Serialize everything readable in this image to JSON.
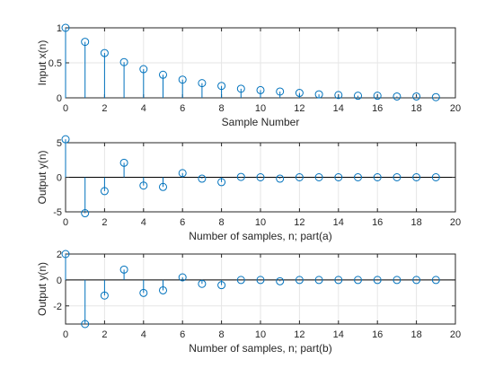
{
  "chart_data": [
    {
      "type": "stem",
      "xlabel": "Sample Number",
      "ylabel": "Input x(n)",
      "xlim": [
        0,
        20
      ],
      "ylim": [
        0,
        1
      ],
      "xticks": [
        "0",
        "2",
        "4",
        "6",
        "8",
        "10",
        "12",
        "14",
        "16",
        "18",
        "20"
      ],
      "yticks": [
        "0",
        "0.5",
        "1"
      ],
      "grid": true,
      "x": [
        0,
        1,
        2,
        3,
        4,
        5,
        6,
        7,
        8,
        9,
        10,
        11,
        12,
        13,
        14,
        15,
        16,
        17,
        18,
        19
      ],
      "values": [
        1,
        0.8,
        0.64,
        0.51,
        0.41,
        0.33,
        0.26,
        0.21,
        0.17,
        0.13,
        0.11,
        0.09,
        0.07,
        0.05,
        0.04,
        0.03,
        0.03,
        0.02,
        0.02,
        0.01
      ]
    },
    {
      "type": "stem",
      "xlabel": "Number of samples, n; part(a)",
      "ylabel": "Output y(n)",
      "xlim": [
        0,
        20
      ],
      "ylim": [
        -5,
        5
      ],
      "xticks": [
        "0",
        "2",
        "4",
        "6",
        "8",
        "10",
        "12",
        "14",
        "16",
        "18",
        "20"
      ],
      "yticks": [
        "-5",
        "0",
        "5"
      ],
      "grid": true,
      "x": [
        0,
        1,
        2,
        3,
        4,
        5,
        6,
        7,
        8,
        9,
        10,
        11,
        12,
        13,
        14,
        15,
        16,
        17,
        18,
        19
      ],
      "values": [
        5.5,
        -5.2,
        -2,
        2.1,
        -1.2,
        -1.4,
        0.6,
        -0.2,
        -0.7,
        0.05,
        0,
        -0.2,
        0,
        0,
        0,
        0,
        0,
        0,
        0,
        0
      ]
    },
    {
      "type": "stem",
      "xlabel": "Number of samples, n; part(b)",
      "ylabel": "Output y(n)",
      "xlim": [
        0,
        20
      ],
      "ylim": [
        -3.4,
        2
      ],
      "xticks": [
        "0",
        "2",
        "4",
        "6",
        "8",
        "10",
        "12",
        "14",
        "16",
        "18",
        "20"
      ],
      "yticks": [
        "-2",
        "0",
        "2"
      ],
      "grid": true,
      "x": [
        0,
        1,
        2,
        3,
        4,
        5,
        6,
        7,
        8,
        9,
        10,
        11,
        12,
        13,
        14,
        15,
        16,
        17,
        18,
        19
      ],
      "values": [
        2,
        -3.4,
        -1.2,
        0.8,
        -1,
        -0.8,
        0.2,
        -0.3,
        -0.4,
        0,
        0,
        -0.1,
        0,
        0,
        0,
        0,
        0,
        0,
        0,
        0
      ]
    }
  ],
  "colors": {
    "stem": "#0072BD",
    "axis": "#262626",
    "grid": "#e6e6e6",
    "background": "#ffffff"
  }
}
